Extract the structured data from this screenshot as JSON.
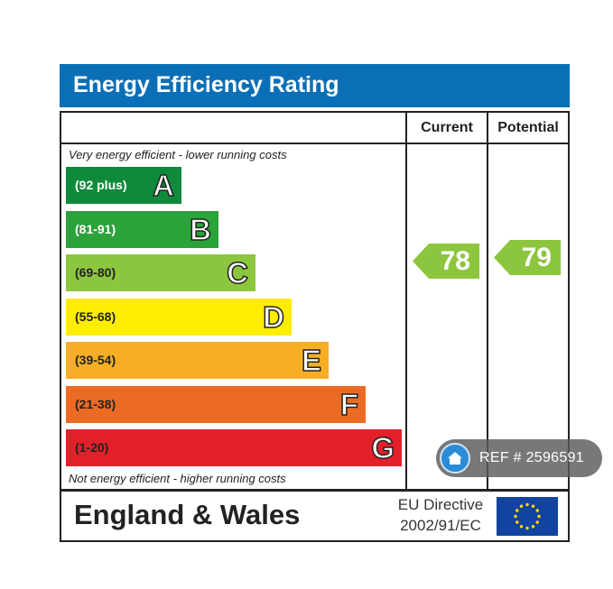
{
  "header": {
    "title": "Energy Efficiency Rating",
    "color": "#0a6fb6"
  },
  "columns": {
    "current": "Current",
    "potential": "Potential"
  },
  "captions": {
    "top": "Very energy efficient - lower running costs",
    "bottom": "Not energy efficient - higher running costs"
  },
  "bands": [
    {
      "range": "(92 plus)",
      "letter": "A",
      "color": "#0f8a3c",
      "text_color": "#ffffff"
    },
    {
      "range": "(81-91)",
      "letter": "B",
      "color": "#2ba23a",
      "text_color": "#ffffff"
    },
    {
      "range": "(69-80)",
      "letter": "C",
      "color": "#8cc63e",
      "text_color": "#222222"
    },
    {
      "range": "(55-68)",
      "letter": "D",
      "color": "#ffed00",
      "text_color": "#222222"
    },
    {
      "range": "(39-54)",
      "letter": "E",
      "color": "#f7ae24",
      "text_color": "#222222"
    },
    {
      "range": "(21-38)",
      "letter": "F",
      "color": "#ec6b23",
      "text_color": "#222222"
    },
    {
      "range": "(1-20)",
      "letter": "G",
      "color": "#e3202a",
      "text_color": "#222222"
    }
  ],
  "ratings": {
    "current": {
      "value": "78",
      "color": "#8cc63e"
    },
    "potential": {
      "value": "79",
      "color": "#8cc63e"
    }
  },
  "footer": {
    "region": "England & Wales",
    "directive_line1": "EU Directive",
    "directive_line2": "2002/91/EC",
    "flag_icon": "eu-flag-icon"
  },
  "watermark": {
    "ref": "REF # 2596591",
    "icon": "home-icon"
  }
}
